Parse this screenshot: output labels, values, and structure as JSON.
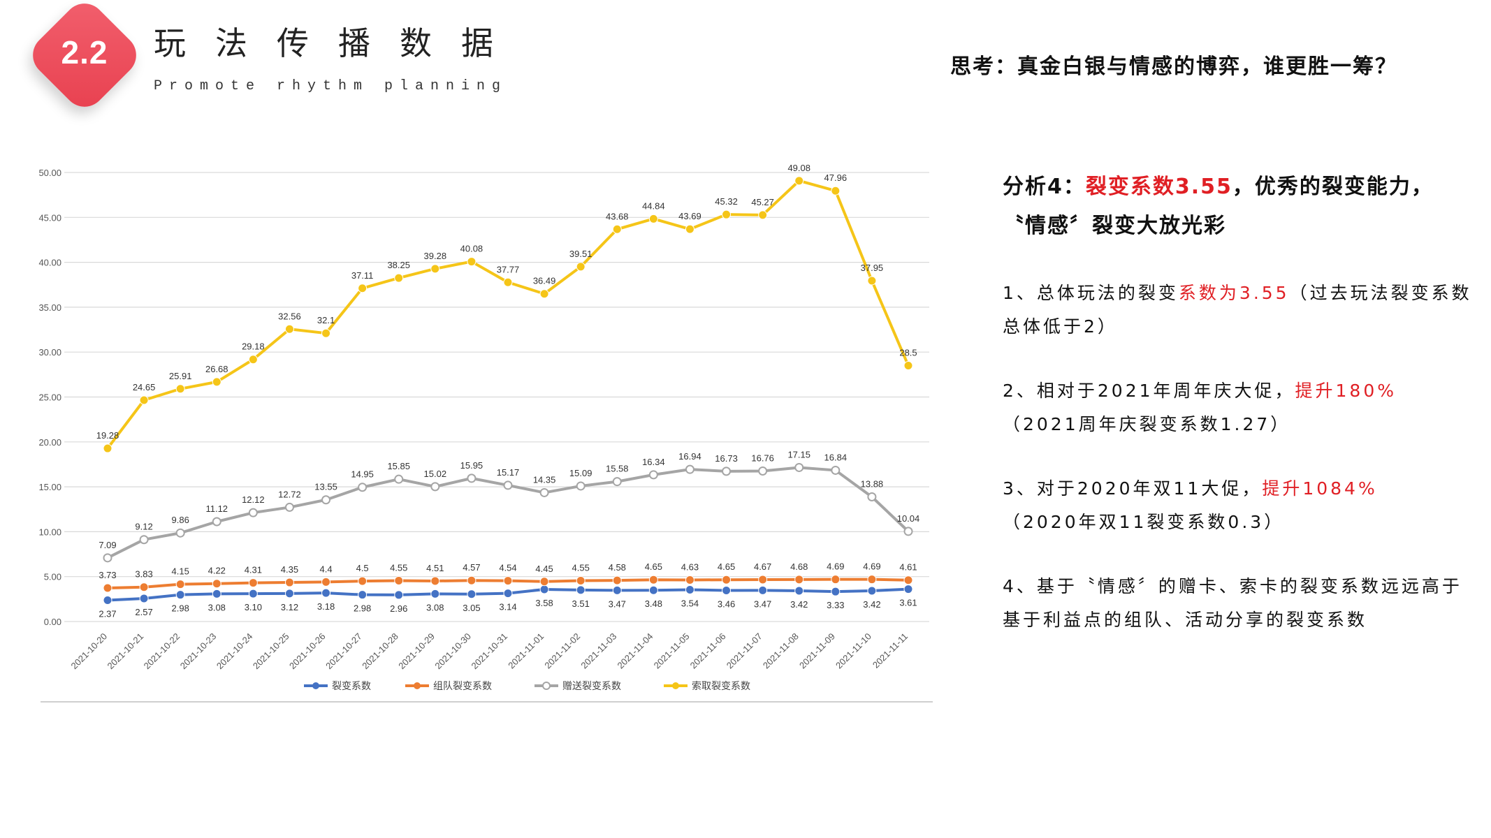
{
  "header": {
    "badge": "2.2",
    "title": "玩法传播数据",
    "subtitle": "Promote rhythm planning",
    "question": "思考：真金白银与情感的博弈，谁更胜一筹？"
  },
  "analysis": {
    "head_prefix": "分析4：",
    "head_highlight": "裂变系数3.55",
    "head_suffix": "，优秀的裂变能力，",
    "head_line2": "〝情感〞裂变大放光彩",
    "points": [
      {
        "pre": "1、总体玩法的裂变",
        "hl": "系数为3.55",
        "post": "（过去玩法裂变系数总体低于2）"
      },
      {
        "pre": "2、相对于2021年周年庆大促，",
        "hl": "提升180%",
        "post": "（2021周年庆裂变系数1.27）"
      },
      {
        "pre": "3、对于2020年双11大促，",
        "hl": "提升1084%",
        "post": "（2020年双11裂变系数0.3）"
      },
      {
        "pre": "4、基于〝情感〞的赠卡、索卡的裂变系数远远高于基于利益点的组队、活动分享的裂变系数",
        "hl": "",
        "post": ""
      }
    ]
  },
  "colors": {
    "accent_red": "#e01f24",
    "series_blue": "#4472c4",
    "series_orange": "#ed7d31",
    "series_gray": "#a5a5a5",
    "series_yellow": "#f5c518"
  },
  "chart_data": {
    "type": "line",
    "ylim": [
      0,
      50
    ],
    "y_ticks": [
      "0.00",
      "5.00",
      "10.00",
      "15.00",
      "20.00",
      "25.00",
      "30.00",
      "35.00",
      "40.00",
      "45.00",
      "50.00"
    ],
    "categories": [
      "2021-10-20",
      "2021-10-21",
      "2021-10-22",
      "2021-10-23",
      "2021-10-24",
      "2021-10-25",
      "2021-10-26",
      "2021-10-27",
      "2021-10-28",
      "2021-10-29",
      "2021-10-30",
      "2021-10-31",
      "2021-11-01",
      "2021-11-02",
      "2021-11-03",
      "2021-11-04",
      "2021-11-05",
      "2021-11-06",
      "2021-11-07",
      "2021-11-08",
      "2021-11-09",
      "2021-11-10",
      "2021-11-11"
    ],
    "grid": true,
    "legend": "bottom",
    "series": [
      {
        "name": "裂变系数",
        "color": "#4472c4",
        "label_pos": "below",
        "values": [
          2.37,
          2.57,
          2.98,
          3.08,
          3.1,
          3.12,
          3.18,
          2.98,
          2.96,
          3.08,
          3.05,
          3.14,
          3.58,
          3.51,
          3.47,
          3.48,
          3.54,
          3.46,
          3.47,
          3.42,
          3.33,
          3.42,
          3.61
        ],
        "labels": [
          "2.37",
          "2.57",
          "2.98",
          "3.08",
          "3.10",
          "3.12",
          "3.18",
          "2.98",
          "2.96",
          "3.08",
          "3.05",
          "3.14",
          "3.58",
          "3.51",
          "3.47",
          "3.48",
          "3.54",
          "3.46",
          "3.47",
          "3.42",
          "3.33",
          "3.42",
          "3.61"
        ]
      },
      {
        "name": "组队裂变系数",
        "color": "#ed7d31",
        "label_pos": "above",
        "values": [
          3.73,
          3.83,
          4.15,
          4.22,
          4.31,
          4.35,
          4.4,
          4.5,
          4.55,
          4.51,
          4.57,
          4.54,
          4.45,
          4.55,
          4.58,
          4.65,
          4.63,
          4.65,
          4.67,
          4.68,
          4.69,
          4.69,
          4.61
        ],
        "labels": [
          "3.73",
          "3.83",
          "4.15",
          "4.22",
          "4.31",
          "4.35",
          "4.4",
          "4.5",
          "4.55",
          "4.51",
          "4.57",
          "4.54",
          "4.45",
          "4.55",
          "4.58",
          "4.65",
          "4.63",
          "4.65",
          "4.67",
          "4.68",
          "4.69",
          "4.69",
          "4.61"
        ]
      },
      {
        "name": "赠送裂变系数",
        "color": "#a5a5a5",
        "label_pos": "above",
        "hollow": true,
        "values": [
          7.09,
          9.12,
          9.86,
          11.12,
          12.12,
          12.72,
          13.55,
          14.95,
          15.85,
          15.02,
          15.95,
          15.17,
          14.35,
          15.09,
          15.58,
          16.34,
          16.94,
          16.73,
          16.76,
          17.15,
          16.84,
          13.88,
          10.04
        ],
        "labels": [
          "7.09",
          "9.12",
          "9.86",
          "11.12",
          "12.12",
          "12.72",
          "13.55",
          "14.95",
          "15.85",
          "15.02",
          "15.95",
          "15.17",
          "14.35",
          "15.09",
          "15.58",
          "16.34",
          "16.94",
          "16.73",
          "16.76",
          "17.15",
          "16.84",
          "13.88",
          "10.04"
        ]
      },
      {
        "name": "索取裂变系数",
        "color": "#f5c518",
        "label_pos": "above",
        "values": [
          19.28,
          24.65,
          25.91,
          26.68,
          29.18,
          32.56,
          32.1,
          37.11,
          38.25,
          39.28,
          40.08,
          37.77,
          36.49,
          39.51,
          43.68,
          44.84,
          43.69,
          45.32,
          45.27,
          49.08,
          47.96,
          37.95,
          28.5
        ],
        "labels": [
          "19.28",
          "24.65",
          "25.91",
          "26.68",
          "29.18",
          "32.56",
          "32.1",
          "37.11",
          "38.25",
          "39.28",
          "40.08",
          "37.77",
          "36.49",
          "39.51",
          "43.68",
          "44.84",
          "43.69",
          "45.32",
          "45.27",
          "49.08",
          "47.96",
          "37.95",
          "28.5"
        ]
      }
    ]
  }
}
